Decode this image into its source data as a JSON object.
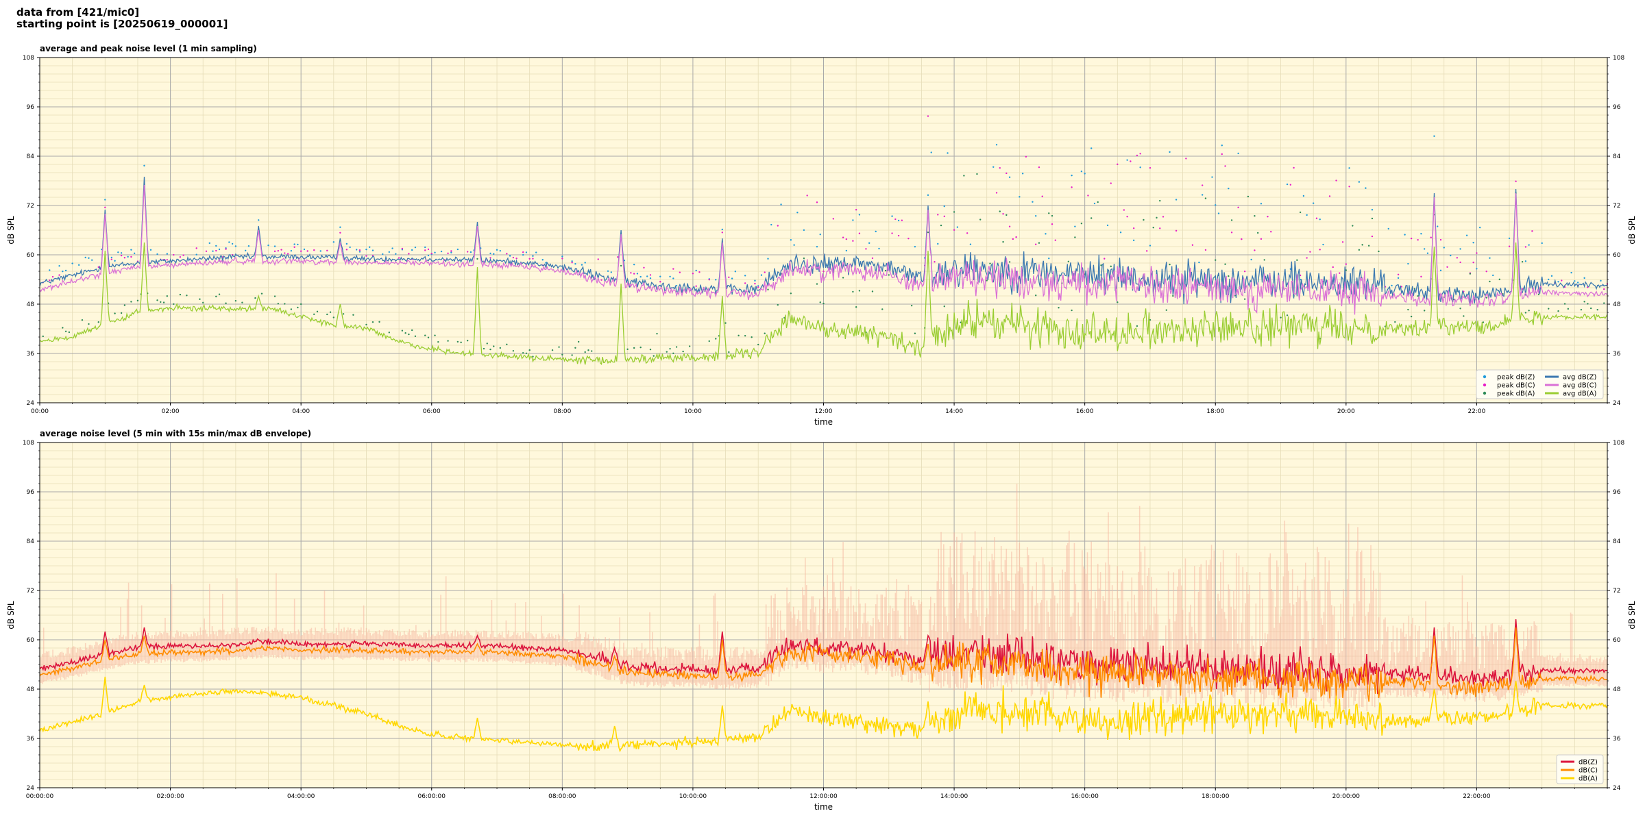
{
  "header": {
    "line1": "data from [421/mic0]",
    "line2": "starting point is [20250619_000001]"
  },
  "chart_data": [
    {
      "type": "line",
      "title": "average and peak noise level (1 min sampling)",
      "xlabel": "time",
      "ylabel": "dB SPL",
      "ylim": [
        24,
        108
      ],
      "yticks": [
        24,
        36,
        48,
        60,
        72,
        84,
        96,
        108
      ],
      "xticks": [
        "00:00",
        "02:00",
        "04:00",
        "06:00",
        "08:00",
        "10:00",
        "12:00",
        "14:00",
        "16:00",
        "18:00",
        "20:00",
        "22:00"
      ],
      "xtick_hours": [
        0,
        2,
        4,
        6,
        8,
        10,
        12,
        14,
        16,
        18,
        20,
        22
      ],
      "xlim_hours": [
        0,
        24
      ],
      "grid": true,
      "legend_position": "lower-right",
      "background": "#fff8dc",
      "series": [
        {
          "name": "peak dB(Z)",
          "kind": "scatter",
          "color": "#1f9bdc",
          "base_series": "avg dB(Z)"
        },
        {
          "name": "peak dB(C)",
          "kind": "scatter",
          "color": "#e81ec8",
          "base_series": "avg dB(C)"
        },
        {
          "name": "peak dB(A)",
          "kind": "scatter",
          "color": "#2e8b57",
          "base_series": "avg dB(A)"
        },
        {
          "name": "avg dB(Z)",
          "kind": "line",
          "color": "#3b78b0",
          "x": [
            0,
            0.5,
            1,
            1.5,
            2,
            2.5,
            3,
            3.5,
            4,
            5,
            6,
            7,
            7.5,
            8,
            8.5,
            9,
            9.5,
            10,
            10.5,
            11,
            11.5,
            12,
            12.5,
            13,
            13.5,
            14,
            14.5,
            15,
            15.5,
            16,
            16.5,
            17,
            17.5,
            18,
            18.5,
            19,
            19.5,
            20,
            20.5,
            21,
            21.5,
            22,
            22.5,
            23,
            24
          ],
          "values": [
            53,
            55,
            57,
            58,
            58.5,
            59,
            59.5,
            59.5,
            59.5,
            59,
            59,
            58.5,
            58,
            57,
            55,
            53.5,
            52.5,
            52,
            51.5,
            51.5,
            58,
            57.5,
            58,
            57,
            54,
            57,
            56.5,
            56,
            55.5,
            55,
            55,
            54,
            54,
            54,
            53.5,
            53.5,
            53,
            53,
            52.5,
            51,
            50.5,
            50,
            51,
            53,
            52.5
          ],
          "spikes": [
            [
              1.0,
              71
            ],
            [
              1.6,
              79
            ],
            [
              3.35,
              67
            ],
            [
              4.6,
              64
            ],
            [
              6.7,
              68
            ],
            [
              8.9,
              66
            ],
            [
              10.45,
              64
            ],
            [
              13.6,
              72
            ],
            [
              21.35,
              75
            ],
            [
              22.6,
              76
            ]
          ]
        },
        {
          "name": "avg dB(C)",
          "kind": "line",
          "color": "#da70d6",
          "x": [
            0,
            0.5,
            1,
            1.5,
            2,
            2.5,
            3,
            3.5,
            4,
            5,
            6,
            7,
            7.5,
            8,
            8.5,
            9,
            9.5,
            10,
            10.5,
            11,
            11.5,
            12,
            12.5,
            13,
            13.5,
            14,
            14.5,
            15,
            15.5,
            16,
            16.5,
            17,
            17.5,
            18,
            18.5,
            19,
            19.5,
            20,
            20.5,
            21,
            21.5,
            22,
            22.5,
            23,
            24
          ],
          "values": [
            51.5,
            53.5,
            55.5,
            57,
            57.5,
            58,
            58.5,
            58.5,
            58.5,
            58,
            58,
            57.5,
            57,
            56,
            54,
            52.5,
            51.5,
            51,
            50.5,
            50.5,
            56.5,
            56,
            56.5,
            55.5,
            52.5,
            55,
            54.5,
            54,
            53.5,
            53,
            53,
            52,
            52,
            52,
            51.5,
            51.5,
            51,
            51,
            50.5,
            49.5,
            49,
            48.5,
            49.5,
            51,
            50.5
          ],
          "spikes": [
            [
              1.0,
              70
            ],
            [
              1.6,
              77
            ],
            [
              3.35,
              66
            ],
            [
              4.6,
              63
            ],
            [
              6.7,
              67
            ],
            [
              8.9,
              65
            ],
            [
              10.45,
              63
            ],
            [
              13.6,
              71
            ],
            [
              21.35,
              74
            ],
            [
              22.6,
              75
            ]
          ]
        },
        {
          "name": "avg dB(A)",
          "kind": "line",
          "color": "#9acd32",
          "x": [
            0,
            0.5,
            1,
            1.5,
            2,
            2.5,
            3,
            3.5,
            4,
            4.5,
            5,
            5.5,
            6,
            6.5,
            7,
            7.5,
            8,
            8.5,
            9,
            9.5,
            10,
            10.5,
            11,
            11.5,
            12,
            12.5,
            13,
            13.5,
            14,
            14.5,
            15,
            15.5,
            16,
            16.5,
            17,
            17.5,
            18,
            18.5,
            19,
            19.5,
            20,
            20.5,
            21,
            21.5,
            22,
            22.5,
            23,
            24
          ],
          "values": [
            39,
            40,
            43,
            46,
            47,
            47,
            47,
            47,
            45,
            43,
            42,
            39,
            37,
            36,
            35.5,
            35,
            34.5,
            34,
            34.5,
            35,
            35,
            35.5,
            36,
            45,
            42,
            41,
            40,
            37,
            43,
            44,
            43,
            42,
            41.5,
            41.5,
            42,
            42,
            42,
            42.5,
            42.5,
            42.5,
            42,
            42.5,
            42,
            42.5,
            43,
            43.5,
            45,
            45
          ],
          "spikes": [
            [
              1.0,
              61
            ],
            [
              1.6,
              63
            ],
            [
              3.35,
              50
            ],
            [
              4.6,
              48
            ],
            [
              6.7,
              57
            ],
            [
              8.9,
              53
            ],
            [
              10.45,
              50
            ],
            [
              13.6,
              61
            ],
            [
              21.35,
              62
            ],
            [
              22.6,
              63
            ]
          ]
        }
      ]
    },
    {
      "type": "line",
      "title": "average noise level (5 min with 15s min/max dB envelope)",
      "xlabel": "time",
      "ylabel": "dB SPL",
      "ylim": [
        24,
        108
      ],
      "yticks": [
        24,
        36,
        48,
        60,
        72,
        84,
        96,
        108
      ],
      "xticks": [
        "00:00:00",
        "02:00:00",
        "04:00:00",
        "06:00:00",
        "08:00:00",
        "10:00:00",
        "12:00:00",
        "14:00:00",
        "16:00:00",
        "18:00:00",
        "20:00:00",
        "22:00:00"
      ],
      "xtick_hours": [
        0,
        2,
        4,
        6,
        8,
        10,
        12,
        14,
        16,
        18,
        20,
        22
      ],
      "xlim_hours": [
        0,
        24
      ],
      "grid": true,
      "legend_position": "lower-right",
      "background": "#fff8dc",
      "envelope_color": "#f5b7a0",
      "series": [
        {
          "name": "dB(Z)",
          "kind": "line",
          "color": "#dc143c",
          "x": [
            0,
            0.5,
            1,
            1.5,
            2,
            2.5,
            3,
            3.5,
            4,
            5,
            6,
            7,
            7.5,
            8,
            8.5,
            9,
            9.5,
            10,
            10.5,
            11,
            11.5,
            12,
            12.5,
            13,
            13.5,
            14,
            14.5,
            15,
            15.5,
            16,
            16.5,
            17,
            17.5,
            18,
            18.5,
            19,
            19.5,
            20,
            20.5,
            21,
            21.5,
            22,
            22.5,
            23,
            24
          ],
          "values": [
            53,
            54.5,
            56.5,
            58,
            58.5,
            58.5,
            59,
            59.5,
            59,
            59,
            58.5,
            58.5,
            58,
            57.5,
            56,
            53.5,
            53,
            53,
            52.5,
            53,
            59,
            58,
            58,
            57,
            55,
            57,
            57,
            56,
            55,
            54.5,
            54,
            54,
            53.5,
            53,
            53,
            52.5,
            52.5,
            52,
            52,
            51.5,
            51,
            50.5,
            51,
            52.5,
            52.5
          ],
          "spikes": [
            [
              1.0,
              62
            ],
            [
              1.6,
              63
            ],
            [
              3.35,
              60
            ],
            [
              6.7,
              61
            ],
            [
              8.8,
              58
            ],
            [
              10.45,
              62
            ],
            [
              13.6,
              61
            ],
            [
              21.35,
              63
            ],
            [
              22.6,
              65
            ]
          ]
        },
        {
          "name": "dB(C)",
          "kind": "line",
          "color": "#ff8c00",
          "x": [
            0,
            0.5,
            1,
            1.5,
            2,
            2.5,
            3,
            3.5,
            4,
            5,
            6,
            7,
            7.5,
            8,
            8.5,
            9,
            9.5,
            10,
            10.5,
            11,
            11.5,
            12,
            12.5,
            13,
            13.5,
            14,
            14.5,
            15,
            15.5,
            16,
            16.5,
            17,
            17.5,
            18,
            18.5,
            19,
            19.5,
            20,
            20.5,
            21,
            21.5,
            22,
            22.5,
            23,
            24
          ],
          "values": [
            51.5,
            53,
            55,
            56.5,
            57,
            57,
            57.5,
            58,
            57.5,
            57.5,
            57,
            57,
            56.5,
            56,
            54.5,
            52,
            51.5,
            51.5,
            51,
            51.5,
            57,
            56.5,
            56.5,
            55.5,
            53,
            55,
            55,
            54,
            53,
            52.5,
            52,
            52,
            51.5,
            51,
            51,
            50.5,
            50.5,
            50,
            50,
            49.5,
            49,
            48.5,
            49,
            50.5,
            50.5
          ],
          "spikes": [
            [
              1.0,
              60
            ],
            [
              1.6,
              61
            ],
            [
              3.35,
              58
            ],
            [
              6.7,
              59
            ],
            [
              8.8,
              56
            ],
            [
              10.45,
              60
            ],
            [
              13.6,
              59
            ],
            [
              21.35,
              61
            ],
            [
              22.6,
              63
            ]
          ]
        },
        {
          "name": "dB(A)",
          "kind": "line",
          "color": "#ffd700",
          "x": [
            0,
            0.5,
            1,
            1.5,
            2,
            2.5,
            3,
            3.5,
            4,
            4.5,
            5,
            5.5,
            6,
            6.5,
            7,
            7.5,
            8,
            8.5,
            9,
            9.5,
            10,
            10.5,
            11,
            11.5,
            12,
            12.5,
            13,
            13.5,
            14,
            14.5,
            15,
            15.5,
            16,
            16.5,
            17,
            17.5,
            18,
            18.5,
            19,
            19.5,
            20,
            20.5,
            21,
            21.5,
            22,
            22.5,
            23,
            24
          ],
          "values": [
            38,
            40,
            42,
            45,
            46,
            47,
            47.5,
            47,
            46,
            44,
            42,
            39,
            37,
            36,
            35.5,
            35,
            34.5,
            34,
            34.5,
            35,
            35,
            35.5,
            36,
            43,
            41,
            40,
            39,
            38,
            42,
            43,
            42,
            41.5,
            40,
            40,
            41,
            41.5,
            42,
            42,
            42,
            42,
            41,
            40.5,
            40,
            41,
            41,
            42,
            44,
            44
          ],
          "spikes": [
            [
              1.0,
              51
            ],
            [
              1.6,
              49
            ],
            [
              3.35,
              47
            ],
            [
              6.7,
              41
            ],
            [
              8.8,
              39
            ],
            [
              10.45,
              44
            ],
            [
              13.6,
              45
            ],
            [
              21.35,
              48
            ],
            [
              22.6,
              50
            ]
          ]
        }
      ]
    }
  ]
}
